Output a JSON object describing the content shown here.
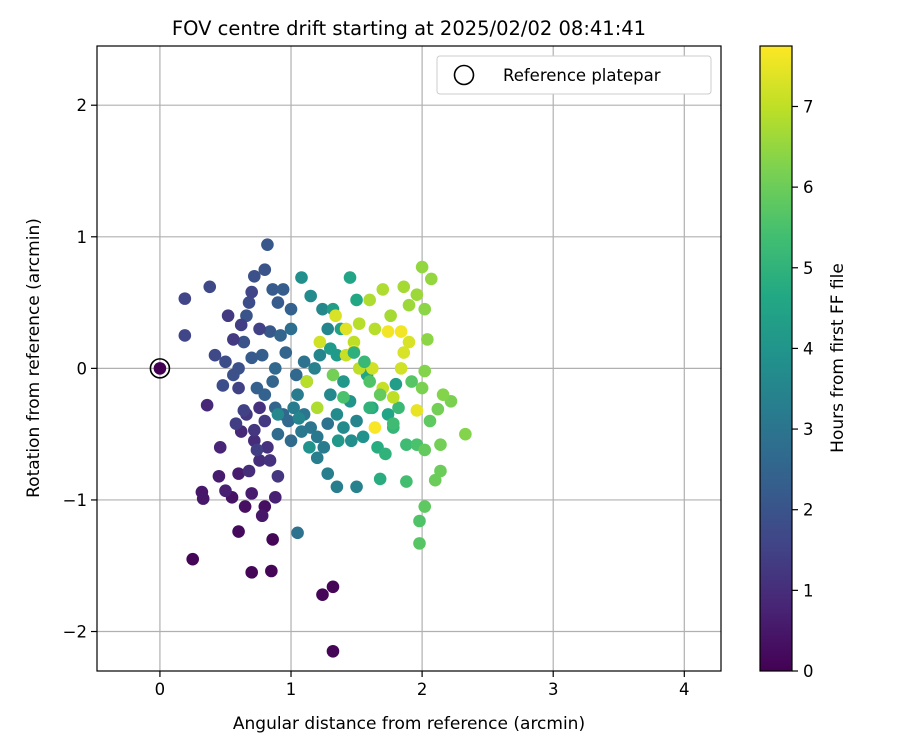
{
  "chart_data": {
    "type": "scatter",
    "title": "FOV centre drift starting at 2025/02/02 08:41:41",
    "xlabel": "Angular distance from reference (arcmin)",
    "ylabel": "Rotation from reference (arcmin)",
    "xlim": [
      -0.48,
      4.28
    ],
    "ylim": [
      -2.3,
      2.45
    ],
    "xticks": [
      0,
      1,
      2,
      3,
      4
    ],
    "yticks": [
      -2,
      -1,
      0,
      1,
      2
    ],
    "xtick_labels": [
      "0",
      "1",
      "2",
      "3",
      "4"
    ],
    "ytick_labels": [
      "−2",
      "−1",
      "0",
      "1",
      "2"
    ],
    "grid": true,
    "legend": {
      "position": "top-right",
      "label": "Reference platepar"
    },
    "reference_point": {
      "x": 0,
      "y": 0
    },
    "colorbar": {
      "label": "Hours from first FF file",
      "range": [
        0,
        7.75
      ],
      "ticks": [
        0,
        1,
        2,
        3,
        4,
        5,
        6,
        7
      ],
      "tick_labels": [
        "0",
        "1",
        "2",
        "3",
        "4",
        "5",
        "6",
        "7"
      ],
      "colormap": "viridis"
    },
    "points": [
      [
        0.0,
        0.0,
        0.0
      ],
      [
        0.25,
        -1.45,
        0.1
      ],
      [
        0.7,
        -1.55,
        0.1
      ],
      [
        0.85,
        -1.54,
        0.1
      ],
      [
        0.86,
        -1.3,
        0.1
      ],
      [
        1.24,
        -1.72,
        0.1
      ],
      [
        1.32,
        -1.66,
        0.1
      ],
      [
        1.32,
        -2.15,
        0.1
      ],
      [
        0.6,
        -1.24,
        0.2
      ],
      [
        0.65,
        -1.05,
        0.3
      ],
      [
        0.8,
        -1.05,
        0.3
      ],
      [
        0.55,
        -0.98,
        0.4
      ],
      [
        0.33,
        -0.99,
        0.5
      ],
      [
        0.32,
        -0.94,
        0.5
      ],
      [
        0.45,
        -0.82,
        0.6
      ],
      [
        0.6,
        -0.8,
        0.6
      ],
      [
        0.7,
        -0.95,
        0.6
      ],
      [
        0.78,
        -1.12,
        0.5
      ],
      [
        0.88,
        -0.98,
        0.7
      ],
      [
        0.5,
        -0.93,
        0.7
      ],
      [
        0.46,
        -0.6,
        0.8
      ],
      [
        0.36,
        -0.28,
        0.9
      ],
      [
        0.62,
        -0.48,
        0.9
      ],
      [
        0.72,
        -0.55,
        1.0
      ],
      [
        0.76,
        -0.7,
        1.0
      ],
      [
        0.82,
        -0.6,
        1.1
      ],
      [
        0.68,
        -0.78,
        1.0
      ],
      [
        0.9,
        -0.82,
        1.2
      ],
      [
        0.84,
        -0.7,
        1.1
      ],
      [
        0.66,
        -0.35,
        1.2
      ],
      [
        0.72,
        -0.47,
        1.2
      ],
      [
        0.8,
        -0.4,
        1.3
      ],
      [
        0.58,
        -0.42,
        1.4
      ],
      [
        0.64,
        -0.32,
        1.5
      ],
      [
        0.6,
        -0.15,
        1.5
      ],
      [
        0.74,
        -0.62,
        1.4
      ],
      [
        0.19,
        0.53,
        1.6
      ],
      [
        0.19,
        0.25,
        1.6
      ],
      [
        0.38,
        0.62,
        1.7
      ],
      [
        0.42,
        0.1,
        1.7
      ],
      [
        0.5,
        0.05,
        1.8
      ],
      [
        0.48,
        -0.13,
        1.8
      ],
      [
        0.56,
        -0.05,
        1.9
      ],
      [
        0.6,
        0.0,
        1.9
      ],
      [
        0.64,
        0.2,
        2.0
      ],
      [
        0.66,
        0.4,
        2.0
      ],
      [
        0.68,
        0.5,
        1.8
      ],
      [
        0.72,
        0.7,
        1.9
      ],
      [
        0.8,
        0.75,
        2.0
      ],
      [
        0.82,
        0.94,
        2.1
      ],
      [
        0.86,
        0.6,
        2.2
      ],
      [
        0.9,
        0.5,
        2.2
      ],
      [
        0.84,
        0.28,
        2.1
      ],
      [
        0.78,
        0.1,
        2.3
      ],
      [
        0.7,
        0.08,
        2.2
      ],
      [
        0.74,
        -0.15,
        2.4
      ],
      [
        0.8,
        -0.2,
        2.4
      ],
      [
        0.88,
        -0.3,
        2.5
      ],
      [
        0.94,
        -0.35,
        2.6
      ],
      [
        0.98,
        -0.4,
        2.6
      ],
      [
        1.0,
        -0.55,
        2.7
      ],
      [
        0.9,
        -0.5,
        2.7
      ],
      [
        1.05,
        -1.25,
        2.9
      ],
      [
        1.04,
        -0.05,
        2.6
      ],
      [
        0.96,
        0.12,
        2.5
      ],
      [
        0.92,
        0.25,
        2.5
      ],
      [
        1.0,
        0.3,
        2.8
      ],
      [
        0.88,
        0.0,
        2.6
      ],
      [
        0.86,
        -0.1,
        2.5
      ],
      [
        1.1,
        -0.35,
        3.0
      ],
      [
        1.15,
        -0.45,
        3.0
      ],
      [
        1.2,
        -0.52,
        3.1
      ],
      [
        1.25,
        -0.6,
        3.2
      ],
      [
        1.28,
        -0.8,
        3.3
      ],
      [
        1.35,
        -0.9,
        3.3
      ],
      [
        1.5,
        -0.9,
        3.4
      ],
      [
        1.2,
        -0.68,
        3.3
      ],
      [
        1.08,
        -0.48,
        3.1
      ],
      [
        1.05,
        -0.2,
        3.2
      ],
      [
        1.12,
        -0.1,
        3.3
      ],
      [
        1.18,
        0.0,
        3.4
      ],
      [
        1.22,
        0.1,
        3.5
      ],
      [
        1.28,
        0.3,
        3.5
      ],
      [
        1.24,
        0.45,
        3.6
      ],
      [
        1.15,
        0.55,
        3.7
      ],
      [
        1.08,
        0.69,
        3.8
      ],
      [
        1.3,
        -0.2,
        3.6
      ],
      [
        1.35,
        -0.35,
        3.7
      ],
      [
        1.4,
        -0.45,
        3.7
      ],
      [
        1.46,
        -0.55,
        3.8
      ],
      [
        1.55,
        -0.52,
        3.9
      ],
      [
        1.45,
        -0.25,
        4.0
      ],
      [
        1.4,
        -0.1,
        4.1
      ],
      [
        1.35,
        0.1,
        4.2
      ],
      [
        1.3,
        0.15,
        4.2
      ],
      [
        1.32,
        0.45,
        4.3
      ],
      [
        1.38,
        0.3,
        4.4
      ],
      [
        1.45,
        0.69,
        4.5
      ],
      [
        1.5,
        0.52,
        4.6
      ],
      [
        1.58,
        -0.05,
        4.6
      ],
      [
        1.62,
        -0.3,
        4.7
      ],
      [
        1.66,
        -0.6,
        4.8
      ],
      [
        1.68,
        -0.84,
        4.8
      ],
      [
        1.72,
        -0.65,
        5.0
      ],
      [
        1.78,
        -0.45,
        5.1
      ],
      [
        1.82,
        -0.3,
        5.2
      ],
      [
        1.88,
        -0.58,
        5.3
      ],
      [
        1.88,
        -0.86,
        5.4
      ],
      [
        1.96,
        -0.58,
        5.5
      ],
      [
        1.98,
        -1.16,
        5.6
      ],
      [
        1.98,
        -1.33,
        5.7
      ],
      [
        2.02,
        -1.05,
        5.8
      ],
      [
        2.02,
        -0.62,
        5.9
      ],
      [
        2.1,
        -0.85,
        6.0
      ],
      [
        2.14,
        -0.78,
        6.0
      ],
      [
        2.14,
        -0.58,
        6.1
      ],
      [
        2.12,
        -0.31,
        6.1
      ],
      [
        2.22,
        -0.25,
        6.2
      ],
      [
        2.33,
        -0.5,
        6.3
      ],
      [
        2.16,
        -0.2,
        6.3
      ],
      [
        2.0,
        -0.15,
        6.2
      ],
      [
        2.02,
        -0.02,
        6.3
      ],
      [
        2.04,
        0.22,
        6.4
      ],
      [
        2.02,
        0.45,
        6.4
      ],
      [
        2.0,
        0.77,
        6.5
      ],
      [
        2.07,
        0.68,
        6.5
      ],
      [
        1.96,
        0.56,
        6.6
      ],
      [
        1.9,
        0.48,
        6.6
      ],
      [
        1.86,
        0.62,
        6.7
      ],
      [
        1.76,
        0.4,
        6.7
      ],
      [
        1.7,
        0.6,
        6.8
      ],
      [
        1.6,
        0.52,
        6.8
      ],
      [
        1.64,
        0.3,
        6.9
      ],
      [
        1.52,
        0.34,
        6.9
      ],
      [
        1.48,
        0.2,
        7.0
      ],
      [
        1.42,
        0.1,
        7.1
      ],
      [
        1.52,
        0.0,
        7.0
      ],
      [
        1.62,
        0.0,
        7.2
      ],
      [
        1.7,
        -0.15,
        7.1
      ],
      [
        1.78,
        -0.22,
        7.0
      ],
      [
        1.84,
        0.0,
        7.2
      ],
      [
        1.86,
        0.12,
        7.3
      ],
      [
        1.9,
        0.2,
        7.3
      ],
      [
        1.96,
        -0.32,
        7.5
      ],
      [
        1.84,
        0.28,
        7.6
      ],
      [
        1.74,
        0.28,
        7.6
      ],
      [
        1.64,
        -0.45,
        7.7
      ],
      [
        1.48,
        0.13,
        7.6
      ],
      [
        1.42,
        0.3,
        7.4
      ],
      [
        1.34,
        0.4,
        7.3
      ],
      [
        1.22,
        0.2,
        7.2
      ],
      [
        1.12,
        -0.1,
        6.9
      ],
      [
        1.2,
        -0.3,
        6.8
      ],
      [
        1.32,
        -0.05,
        6.1
      ],
      [
        1.4,
        -0.22,
        5.5
      ],
      [
        1.48,
        0.12,
        4.9
      ],
      [
        1.56,
        0.05,
        5.2
      ],
      [
        1.6,
        -0.1,
        5.6
      ],
      [
        1.68,
        -0.2,
        5.9
      ],
      [
        1.74,
        -0.35,
        4.5
      ],
      [
        1.8,
        -0.12,
        4.3
      ],
      [
        1.5,
        -0.4,
        3.5
      ],
      [
        1.28,
        -0.42,
        2.9
      ],
      [
        1.1,
        0.05,
        2.9
      ],
      [
        1.0,
        0.45,
        2.4
      ],
      [
        0.94,
        0.6,
        2.3
      ],
      [
        0.7,
        0.58,
        1.6
      ],
      [
        0.62,
        0.33,
        1.4
      ],
      [
        0.56,
        0.22,
        1.3
      ],
      [
        0.52,
        0.4,
        1.3
      ],
      [
        0.76,
        0.3,
        1.5
      ],
      [
        0.76,
        -0.3,
        1.1
      ],
      [
        0.9,
        -0.35,
        3.6
      ],
      [
        1.02,
        -0.3,
        3.2
      ],
      [
        1.06,
        -0.38,
        3.5
      ],
      [
        1.14,
        -0.6,
        3.9
      ],
      [
        1.36,
        -0.55,
        4.1
      ],
      [
        1.6,
        -0.3,
        5.0
      ],
      [
        1.78,
        -0.42,
        5.3
      ],
      [
        1.92,
        -0.1,
        5.7
      ],
      [
        2.06,
        -0.4,
        5.8
      ]
    ]
  }
}
